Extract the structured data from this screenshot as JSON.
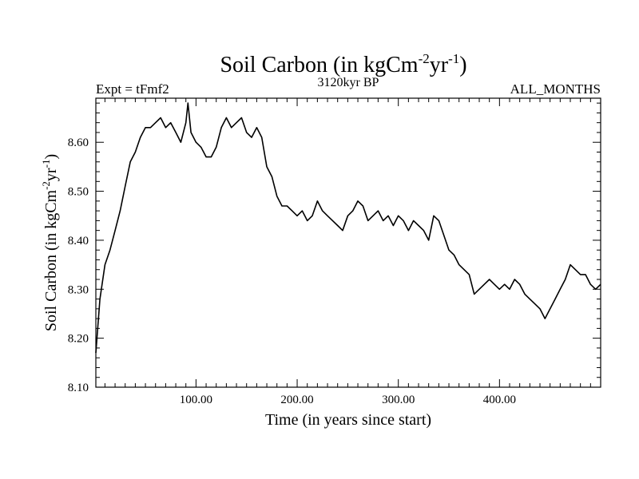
{
  "chart_data": {
    "type": "line",
    "title": {
      "main": "Soil Carbon (in kgCm",
      "sup1": "-2",
      "mid": "yr",
      "sup2": "-1",
      "end": ")"
    },
    "subtitle_left": "Expt = tFmf2",
    "subtitle_center": "3120kyr BP",
    "subtitle_right": "ALL_MONTHS",
    "xlabel": "Time (in years since start)",
    "ylabel": {
      "main": "Soil Carbon (in kgCm",
      "sup1": "-2",
      "mid": "yr",
      "sup2": "-1",
      "end": ")"
    },
    "xlim": [
      1,
      500
    ],
    "ylim": [
      8.1,
      8.69
    ],
    "x_ticks": [
      100,
      200,
      300,
      400
    ],
    "x_tick_labels": [
      "100.00",
      "200.00",
      "300.00",
      "400.00"
    ],
    "y_ticks": [
      8.1,
      8.2,
      8.3,
      8.4,
      8.5,
      8.6
    ],
    "y_tick_labels": [
      "8.10",
      "8.20",
      "8.30",
      "8.40",
      "8.50",
      "8.60"
    ],
    "series": [
      {
        "name": "Soil Carbon",
        "color": "#000000",
        "x": [
          1,
          5,
          10,
          15,
          20,
          25,
          30,
          35,
          40,
          45,
          50,
          55,
          60,
          65,
          70,
          75,
          80,
          85,
          90,
          92,
          95,
          100,
          105,
          110,
          115,
          120,
          125,
          130,
          135,
          140,
          145,
          150,
          155,
          160,
          165,
          170,
          175,
          180,
          185,
          190,
          195,
          200,
          205,
          210,
          215,
          220,
          225,
          230,
          235,
          240,
          245,
          250,
          255,
          260,
          265,
          270,
          275,
          280,
          285,
          290,
          295,
          300,
          305,
          310,
          315,
          320,
          325,
          330,
          335,
          340,
          345,
          350,
          355,
          360,
          365,
          370,
          375,
          380,
          385,
          390,
          395,
          400,
          405,
          410,
          415,
          420,
          425,
          430,
          435,
          440,
          445,
          450,
          455,
          460,
          465,
          470,
          475,
          480,
          485,
          490,
          495,
          500
        ],
        "values": [
          8.17,
          8.28,
          8.35,
          8.38,
          8.42,
          8.46,
          8.51,
          8.56,
          8.58,
          8.61,
          8.63,
          8.63,
          8.64,
          8.65,
          8.63,
          8.64,
          8.62,
          8.6,
          8.64,
          8.68,
          8.62,
          8.6,
          8.59,
          8.57,
          8.57,
          8.59,
          8.63,
          8.65,
          8.63,
          8.64,
          8.65,
          8.62,
          8.61,
          8.63,
          8.61,
          8.55,
          8.53,
          8.49,
          8.47,
          8.47,
          8.46,
          8.45,
          8.46,
          8.44,
          8.45,
          8.48,
          8.46,
          8.45,
          8.44,
          8.43,
          8.42,
          8.45,
          8.46,
          8.48,
          8.47,
          8.44,
          8.45,
          8.46,
          8.44,
          8.45,
          8.43,
          8.45,
          8.44,
          8.42,
          8.44,
          8.43,
          8.42,
          8.4,
          8.45,
          8.44,
          8.41,
          8.38,
          8.37,
          8.35,
          8.34,
          8.33,
          8.29,
          8.3,
          8.31,
          8.32,
          8.31,
          8.3,
          8.31,
          8.3,
          8.32,
          8.31,
          8.29,
          8.28,
          8.27,
          8.26,
          8.24,
          8.26,
          8.28,
          8.3,
          8.32,
          8.35,
          8.34,
          8.33,
          8.33,
          8.31,
          8.3,
          8.31
        ]
      }
    ]
  }
}
